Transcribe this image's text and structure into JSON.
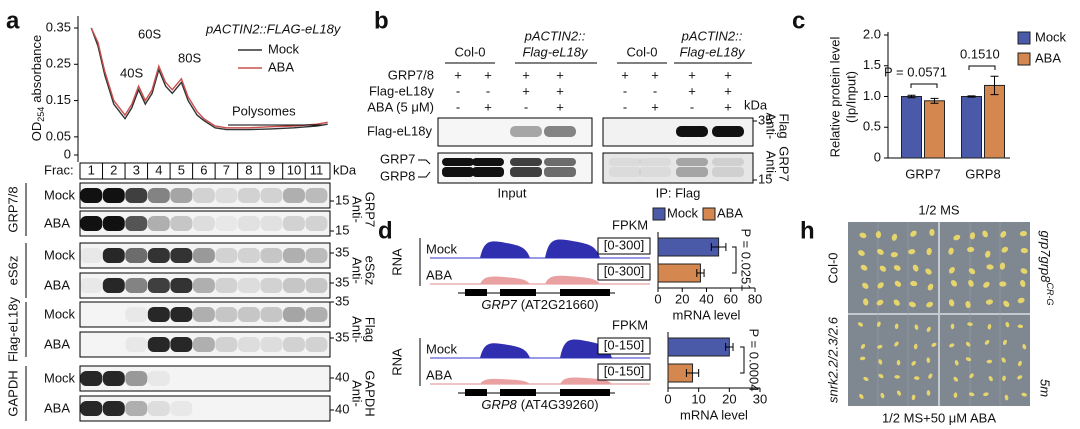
{
  "panel_letters": [
    "a",
    "b",
    "c",
    "d",
    "h"
  ],
  "chart_data": [
    {
      "type": "line",
      "title": "pACTIN2::FLAG-eL18y",
      "y_label": "OD",
      "y_label_subscript": "254",
      "y_label_suffix": "absorbance",
      "x": [
        1.0,
        1.3,
        1.6,
        2.0,
        2.5,
        2.8,
        3.1,
        3.4,
        3.7,
        4.0,
        4.3,
        4.6,
        5.0,
        5.3,
        5.7,
        6.0,
        6.5,
        7,
        8,
        9,
        10,
        11,
        11.5
      ],
      "xlim": [
        0.5,
        11.6
      ],
      "ylim": [
        0,
        0.35
      ],
      "yticks": [
        0,
        0.05,
        0.15,
        0.25,
        0.35
      ],
      "legend": "upper right",
      "series": [
        {
          "name": "Mock",
          "color": "#333333",
          "values": [
            0.35,
            0.3,
            0.22,
            0.14,
            0.1,
            0.13,
            0.18,
            0.14,
            0.17,
            0.235,
            0.19,
            0.17,
            0.2,
            0.15,
            0.11,
            0.095,
            0.075,
            0.07,
            0.07,
            0.072,
            0.075,
            0.08,
            0.085
          ]
        },
        {
          "name": "ABA",
          "color": "#c9504d",
          "values": [
            0.35,
            0.31,
            0.23,
            0.15,
            0.11,
            0.14,
            0.19,
            0.15,
            0.18,
            0.245,
            0.2,
            0.18,
            0.21,
            0.16,
            0.12,
            0.1,
            0.08,
            0.075,
            0.075,
            0.078,
            0.08,
            0.085,
            0.09
          ]
        }
      ],
      "annotations": [
        "40S",
        "60S",
        "80S",
        "Polysomes"
      ]
    },
    {
      "type": "bar",
      "y_label": [
        "Relative protein level",
        "(Ip/Input)"
      ],
      "categories": [
        "GRP7",
        "GRP8"
      ],
      "ylim": [
        0,
        2.0
      ],
      "yticks": [
        0,
        0.5,
        {
          "value": 1.0,
          "label": "1.0"
        },
        1.5,
        {
          "value": 2.0,
          "label": "2.0"
        }
      ],
      "legend": "upper right",
      "series": [
        {
          "name": "Mock",
          "color": "#4a5aa8",
          "values": [
            1.0,
            1.0
          ],
          "errors": [
            0.02,
            0.01
          ]
        },
        {
          "name": "ABA",
          "color": "#d4874e",
          "values": [
            0.93,
            1.18
          ],
          "errors": [
            0.04,
            0.15
          ]
        }
      ],
      "annotations": [
        "P = 0.0571",
        "0.1510"
      ]
    },
    {
      "type": "hbar",
      "categories": [
        "Mock",
        "ABA"
      ],
      "values": [
        50,
        35
      ],
      "errors": [
        6,
        3
      ],
      "colors": [
        "#4a5aa8",
        "#d4874e"
      ],
      "x_label": "mRNA level",
      "xlim": [
        0,
        80
      ],
      "xticks": [
        0,
        20,
        40,
        60,
        80
      ],
      "annotation": "P = 0.0251"
    },
    {
      "type": "hbar",
      "categories": [
        "Mock",
        "ABA"
      ],
      "values": [
        20,
        8
      ],
      "errors": [
        1.2,
        2
      ],
      "colors": [
        "#4a5aa8",
        "#d4874e"
      ],
      "x_label": "mRNA level",
      "xlim": [
        0,
        30
      ],
      "xticks": [
        0,
        10,
        20,
        30
      ],
      "annotation": "P = 0.0004"
    }
  ],
  "panel_a": {
    "frac_label": "Frac:",
    "fractions": [
      "1",
      "2",
      "3",
      "4",
      "5",
      "6",
      "7",
      "8",
      "9",
      "10",
      "11"
    ],
    "kda": "kDa",
    "blots": [
      {
        "group": "GRP7/8",
        "rows": [
          "Mock",
          "ABA"
        ],
        "markers": [
          "15",
          "15"
        ],
        "antibody": [
          "Anti-",
          "GRP7"
        ]
      },
      {
        "group": "eS6z",
        "rows": [
          "Mock",
          "ABA"
        ],
        "markers": [
          "35",
          "35"
        ],
        "antibody": [
          "Anti-",
          "eS6z"
        ]
      },
      {
        "group": "Flag-eL18y",
        "rows": [
          "Mock",
          "ABA"
        ],
        "markers": [
          "35",
          "35"
        ],
        "antibody": [
          "Anti-",
          "Flag"
        ]
      },
      {
        "group": "GAPDH",
        "rows": [
          "Mock",
          "ABA"
        ],
        "markers": [
          "40",
          "40"
        ],
        "antibody": [
          "Anti-",
          "GAPDH"
        ]
      }
    ]
  },
  "panel_b": {
    "headers": [
      [
        "Col-0"
      ],
      [
        "pACTIN2::",
        "Flag-eL18y"
      ],
      [
        "Col-0"
      ],
      [
        "pACTIN2::",
        "Flag-eL18y"
      ]
    ],
    "rows": [
      {
        "label": "GRP7/8",
        "signs": [
          "+",
          "+",
          "+",
          "+",
          "+",
          "+",
          "+",
          "+"
        ]
      },
      {
        "label": "Flag-eL18y",
        "signs": [
          "-",
          "-",
          "+",
          "+",
          "-",
          "-",
          "+",
          "+"
        ]
      },
      {
        "label": "ABA (5 μM)",
        "signs": [
          "-",
          "+",
          "-",
          "+",
          "-",
          "+",
          "-",
          "+"
        ]
      }
    ],
    "kda": "kDa",
    "flag_label": "Flag-eL18y",
    "grp_labels": [
      "GRP7",
      "GRP8"
    ],
    "markers": [
      "35",
      "15"
    ],
    "antibodies": [
      [
        "Anti-",
        "Flag"
      ],
      [
        "Anti-",
        "GRP7"
      ]
    ],
    "captions": [
      "Input",
      "IP: Flag"
    ]
  },
  "panel_d": {
    "legend": [
      "Mock",
      "ABA"
    ],
    "rna": "RNA",
    "tracks": [
      {
        "unit": "FPKM",
        "ranges": [
          "[0-300]",
          "[0-300]"
        ],
        "gene": "GRP7",
        "locus": "(AT2G21660)"
      },
      {
        "unit": "FPKM",
        "ranges": [
          "[0-150]",
          "[0-150]"
        ],
        "gene": "GRP8",
        "locus": "(AT4G39260)"
      }
    ]
  },
  "panel_h": {
    "top": "1/2 MS",
    "bottom": "1/2 MS+50 μM ABA",
    "left": [
      "Col-0",
      "snrk2.2/2.3/2.6"
    ],
    "right_gene": "grp7grp8",
    "right_sup": "CR-G",
    "right_bottom": "5m"
  }
}
